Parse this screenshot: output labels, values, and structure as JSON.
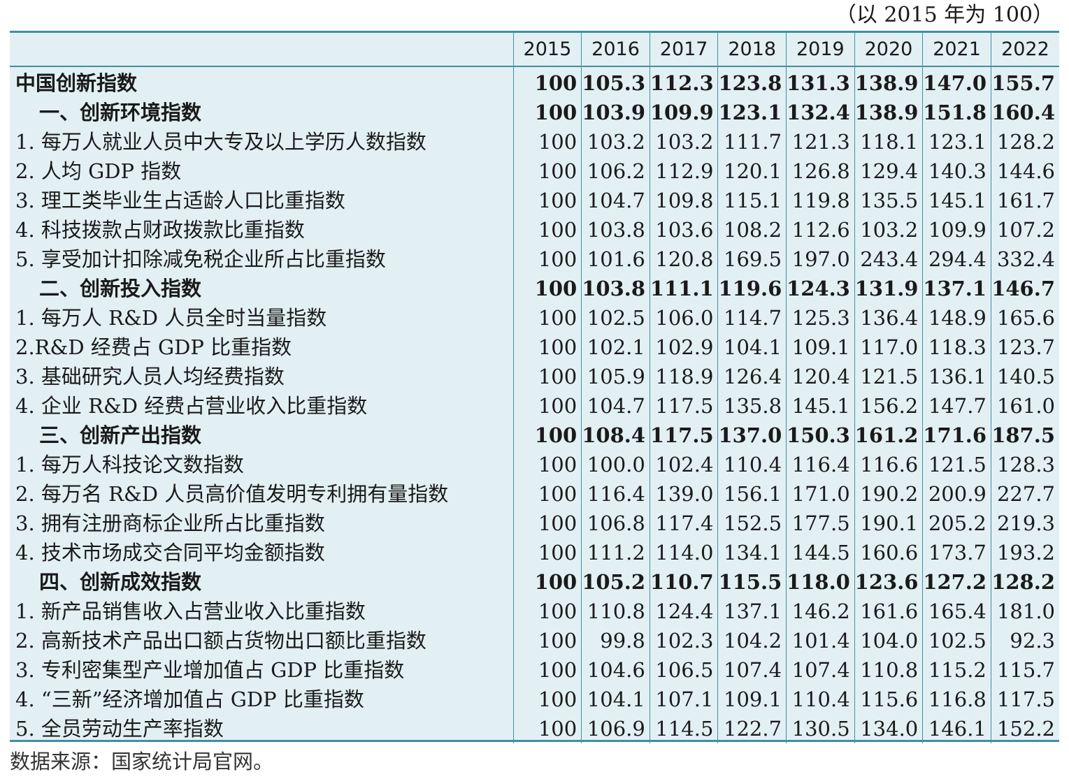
{
  "unit_note": "（以 2015 年为 100）",
  "years": [
    "2015",
    "2016",
    "2017",
    "2018",
    "2019",
    "2020",
    "2021",
    "2022"
  ],
  "rows": [
    {
      "label": "中国创新指数",
      "bold": true,
      "indent": false,
      "values": [
        "100",
        "105.3",
        "112.3",
        "123.8",
        "131.3",
        "138.9",
        "147.0",
        "155.7"
      ]
    },
    {
      "label": "一、创新环境指数",
      "bold": true,
      "indent": true,
      "values": [
        "100",
        "103.9",
        "109.9",
        "123.1",
        "132.4",
        "138.9",
        "151.8",
        "160.4"
      ]
    },
    {
      "label": "1. 每万人就业人员中大专及以上学历人数指数",
      "bold": false,
      "indent": false,
      "values": [
        "100",
        "103.2",
        "103.2",
        "111.7",
        "121.3",
        "118.1",
        "123.1",
        "128.2"
      ]
    },
    {
      "label": "2. 人均 GDP 指数",
      "bold": false,
      "indent": false,
      "values": [
        "100",
        "106.2",
        "112.9",
        "120.1",
        "126.8",
        "129.4",
        "140.3",
        "144.6"
      ]
    },
    {
      "label": "3. 理工类毕业生占适龄人口比重指数",
      "bold": false,
      "indent": false,
      "values": [
        "100",
        "104.7",
        "109.8",
        "115.1",
        "119.8",
        "135.5",
        "145.1",
        "161.7"
      ]
    },
    {
      "label": "4. 科技拨款占财政拨款比重指数",
      "bold": false,
      "indent": false,
      "values": [
        "100",
        "103.8",
        "103.6",
        "108.2",
        "112.6",
        "103.2",
        "109.9",
        "107.2"
      ]
    },
    {
      "label": "5. 享受加计扣除减免税企业所占比重指数",
      "bold": false,
      "indent": false,
      "values": [
        "100",
        "101.6",
        "120.8",
        "169.5",
        "197.0",
        "243.4",
        "294.4",
        "332.4"
      ]
    },
    {
      "label": "二、创新投入指数",
      "bold": true,
      "indent": true,
      "values": [
        "100",
        "103.8",
        "111.1",
        "119.6",
        "124.3",
        "131.9",
        "137.1",
        "146.7"
      ]
    },
    {
      "label": "1. 每万人 R&D 人员全时当量指数",
      "bold": false,
      "indent": false,
      "values": [
        "100",
        "102.5",
        "106.0",
        "114.7",
        "125.3",
        "136.4",
        "148.9",
        "165.6"
      ]
    },
    {
      "label": "2.R&D 经费占 GDP 比重指数",
      "bold": false,
      "indent": false,
      "values": [
        "100",
        "102.1",
        "102.9",
        "104.1",
        "109.1",
        "117.0",
        "118.3",
        "123.7"
      ]
    },
    {
      "label": "3. 基础研究人员人均经费指数",
      "bold": false,
      "indent": false,
      "values": [
        "100",
        "105.9",
        "118.9",
        "126.4",
        "120.4",
        "121.5",
        "136.1",
        "140.5"
      ]
    },
    {
      "label": "4. 企业 R&D 经费占营业收入比重指数",
      "bold": false,
      "indent": false,
      "values": [
        "100",
        "104.7",
        "117.5",
        "135.8",
        "145.1",
        "156.2",
        "147.7",
        "161.0"
      ]
    },
    {
      "label": "三、创新产出指数",
      "bold": true,
      "indent": true,
      "values": [
        "100",
        "108.4",
        "117.5",
        "137.0",
        "150.3",
        "161.2",
        "171.6",
        "187.5"
      ]
    },
    {
      "label": "1. 每万人科技论文数指数",
      "bold": false,
      "indent": false,
      "values": [
        "100",
        "100.0",
        "102.4",
        "110.4",
        "116.4",
        "116.6",
        "121.5",
        "128.3"
      ]
    },
    {
      "label": "2. 每万名 R&D 人员高价值发明专利拥有量指数",
      "bold": false,
      "indent": false,
      "values": [
        "100",
        "116.4",
        "139.0",
        "156.1",
        "171.0",
        "190.2",
        "200.9",
        "227.7"
      ]
    },
    {
      "label": "3. 拥有注册商标企业所占比重指数",
      "bold": false,
      "indent": false,
      "values": [
        "100",
        "106.8",
        "117.4",
        "152.5",
        "177.5",
        "190.1",
        "205.2",
        "219.3"
      ]
    },
    {
      "label": "4. 技术市场成交合同平均金额指数",
      "bold": false,
      "indent": false,
      "values": [
        "100",
        "111.2",
        "114.0",
        "134.1",
        "144.5",
        "160.6",
        "173.7",
        "193.2"
      ]
    },
    {
      "label": "四、创新成效指数",
      "bold": true,
      "indent": true,
      "values": [
        "100",
        "105.2",
        "110.7",
        "115.5",
        "118.0",
        "123.6",
        "127.2",
        "128.2"
      ]
    },
    {
      "label": "1. 新产品销售收入占营业收入比重指数",
      "bold": false,
      "indent": false,
      "values": [
        "100",
        "110.8",
        "124.4",
        "137.1",
        "146.2",
        "161.6",
        "165.4",
        "181.0"
      ]
    },
    {
      "label": "2. 高新技术产品出口额占货物出口额比重指数",
      "bold": false,
      "indent": false,
      "values": [
        "100",
        "99.8",
        "102.3",
        "104.2",
        "101.4",
        "104.0",
        "102.5",
        "92.3"
      ]
    },
    {
      "label": "3. 专利密集型产业增加值占 GDP 比重指数",
      "bold": false,
      "indent": false,
      "values": [
        "100",
        "104.6",
        "106.5",
        "107.4",
        "107.4",
        "110.8",
        "115.2",
        "115.7"
      ]
    },
    {
      "label": "4. “三新”经济增加值占 GDP 比重指数",
      "bold": false,
      "indent": false,
      "values": [
        "100",
        "104.1",
        "107.1",
        "109.1",
        "110.4",
        "115.6",
        "116.8",
        "117.5"
      ]
    },
    {
      "label": "5. 全员劳动生产率指数",
      "bold": false,
      "indent": false,
      "values": [
        "100",
        "106.9",
        "114.5",
        "122.7",
        "130.5",
        "134.0",
        "146.1",
        "152.2"
      ]
    }
  ],
  "source_note": "数据来源：国家统计局官网。",
  "colors": {
    "table_bg": "#e3f0f3",
    "rule": "#3f8fa3"
  }
}
